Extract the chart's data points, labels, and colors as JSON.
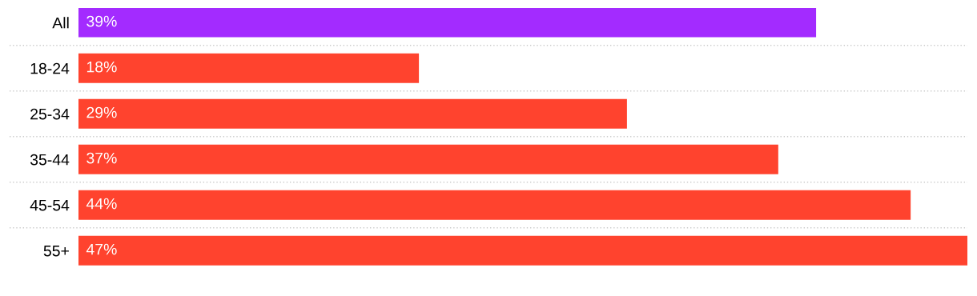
{
  "chart_data": {
    "type": "bar",
    "orientation": "horizontal",
    "categories": [
      "All",
      "18-24",
      "25-34",
      "35-44",
      "45-54",
      "55+"
    ],
    "values": [
      39,
      18,
      29,
      37,
      44,
      47
    ],
    "colors": [
      "#a32bff",
      "#ff432e",
      "#ff432e",
      "#ff432e",
      "#ff432e",
      "#ff432e"
    ],
    "value_labels": [
      "39%",
      "18%",
      "29%",
      "37%",
      "44%",
      "47%"
    ],
    "grid": "y",
    "tick_labels": "y"
  }
}
